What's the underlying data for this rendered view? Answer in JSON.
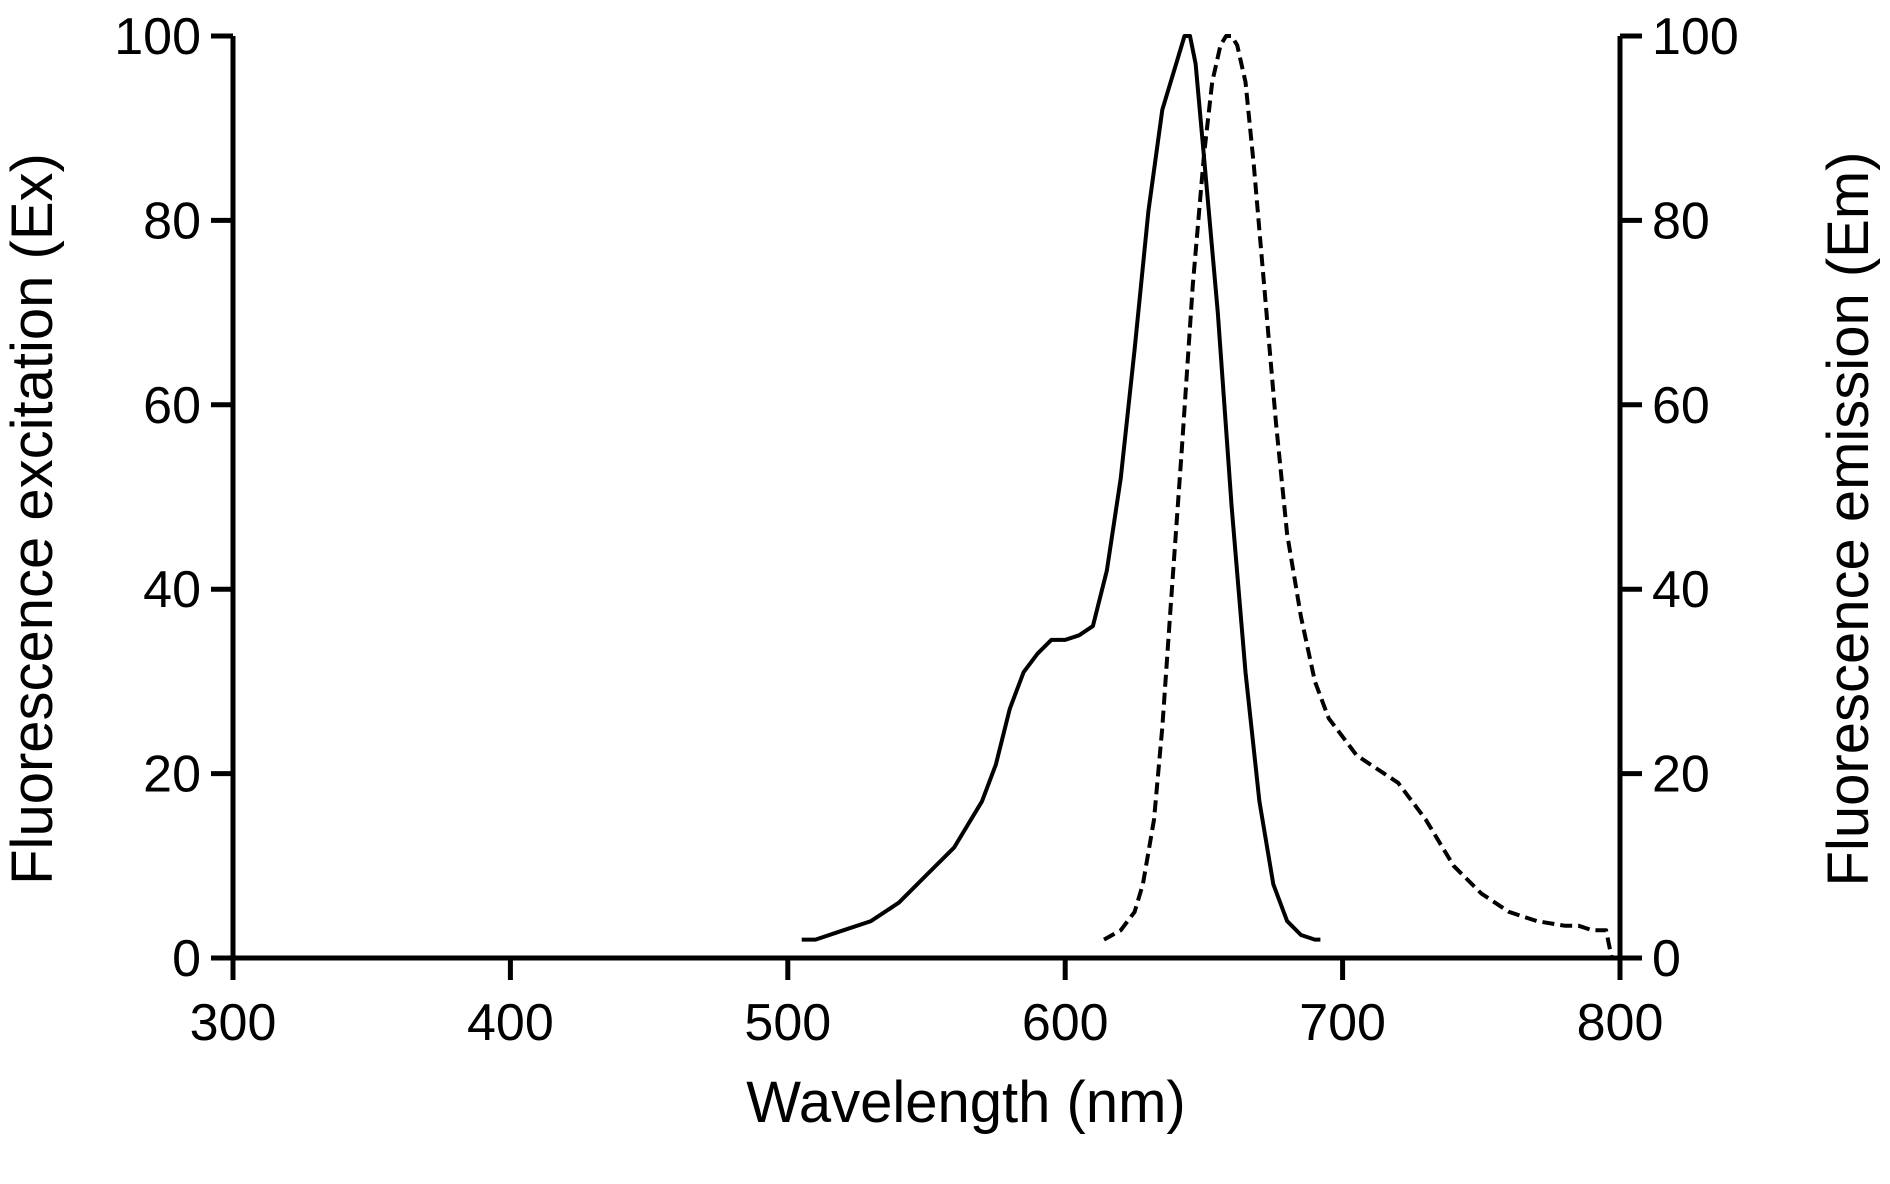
{
  "chart_data": {
    "type": "line",
    "xlabel": "Wavelength (nm)",
    "ylabel_left": "Fluorescence excitation (Ex)",
    "ylabel_right": "Fluorescence emission (Em)",
    "xlim": [
      300,
      800
    ],
    "ylim": [
      0,
      100
    ],
    "x_ticks": [
      300,
      400,
      500,
      600,
      700,
      800
    ],
    "y_ticks": [
      0,
      20,
      40,
      60,
      80,
      100
    ],
    "grid": false,
    "colors": {
      "line": "#000000",
      "background": "#ffffff"
    },
    "series": [
      {
        "axis": "left",
        "style": "solid",
        "x": [
          505,
          510,
          520,
          530,
          540,
          550,
          560,
          570,
          575,
          580,
          585,
          590,
          595,
          600,
          605,
          610,
          615,
          620,
          625,
          630,
          635,
          640,
          643,
          645,
          647,
          650,
          655,
          660,
          665,
          670,
          675,
          680,
          685,
          690,
          692
        ],
        "y": [
          2,
          2,
          3,
          4,
          6,
          9,
          12,
          17,
          21,
          27,
          31,
          33,
          34.5,
          34.5,
          35,
          36,
          42,
          52,
          66,
          81,
          92,
          97,
          100,
          100,
          97,
          87,
          70,
          49,
          31,
          17,
          8,
          4,
          2.5,
          2,
          2
        ]
      },
      {
        "axis": "right",
        "style": "dashed",
        "x": [
          614,
          620,
          625,
          628,
          632,
          635,
          638,
          642,
          646,
          650,
          653,
          656,
          658,
          660,
          662,
          665,
          668,
          672,
          676,
          680,
          685,
          690,
          695,
          700,
          705,
          710,
          715,
          720,
          725,
          730,
          740,
          750,
          760,
          770,
          780,
          785,
          790,
          795,
          797
        ],
        "y": [
          2,
          3,
          5,
          8,
          15,
          25,
          38,
          55,
          73,
          87,
          95,
          99,
          100,
          100,
          99,
          95,
          86,
          72,
          58,
          46,
          37,
          30,
          26,
          24,
          22,
          21,
          20,
          19,
          17,
          15,
          10,
          7,
          5,
          4,
          3.5,
          3.5,
          3,
          3,
          0
        ]
      }
    ]
  }
}
